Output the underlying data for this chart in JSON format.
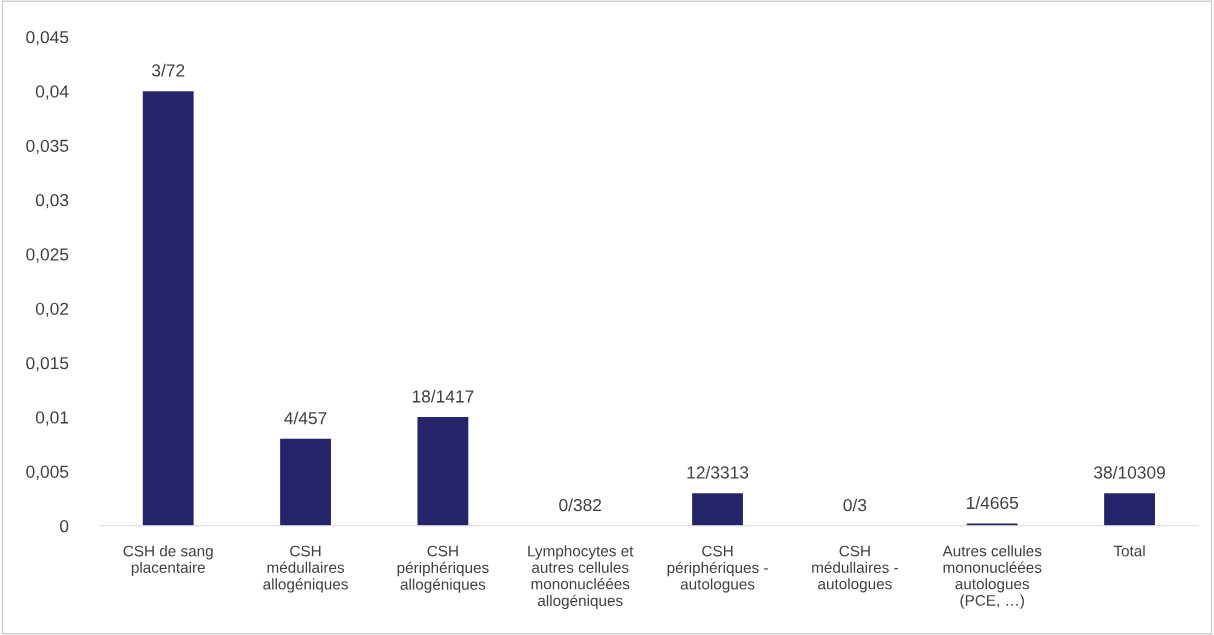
{
  "chart_data": {
    "type": "bar",
    "categories": [
      "CSH de sang\nplacentaire",
      "CSH\nmédullaires\nallogéniques",
      "CSH\npériphériques\nallogéniques",
      "Lymphocytes et\nautres cellules\nmononucléées\nallogéniques",
      "CSH\npériphériques -\nautologues",
      "CSH\nmédullaires -\nautologues",
      "Autres cellules\nmononucléées\nautologues\n(PCE, …)",
      "Total"
    ],
    "values": [
      0.04,
      0.008,
      0.01,
      0,
      0.003,
      0,
      0.0002,
      0.003
    ],
    "value_labels": [
      "3/72",
      "4/457",
      "18/1417",
      "0/382",
      "12/3313",
      "0/3",
      "1/4665",
      "38/10309"
    ],
    "color": "#24246b",
    "ylim": [
      0,
      0.045
    ],
    "yticks": [
      0,
      {
        "value": 0.005,
        "label": "0,005"
      },
      {
        "value": 0.01,
        "label": "0,01"
      },
      {
        "value": 0.015,
        "label": "0,015"
      },
      {
        "value": 0.02,
        "label": "0,02"
      },
      {
        "value": 0.025,
        "label": "0,025"
      },
      {
        "value": 0.03,
        "label": "0,03"
      },
      {
        "value": 0.035,
        "label": "0,035"
      },
      {
        "value": 0.04,
        "label": "0,04"
      },
      {
        "value": 0.045,
        "label": "0,045"
      }
    ],
    "grid": false
  }
}
